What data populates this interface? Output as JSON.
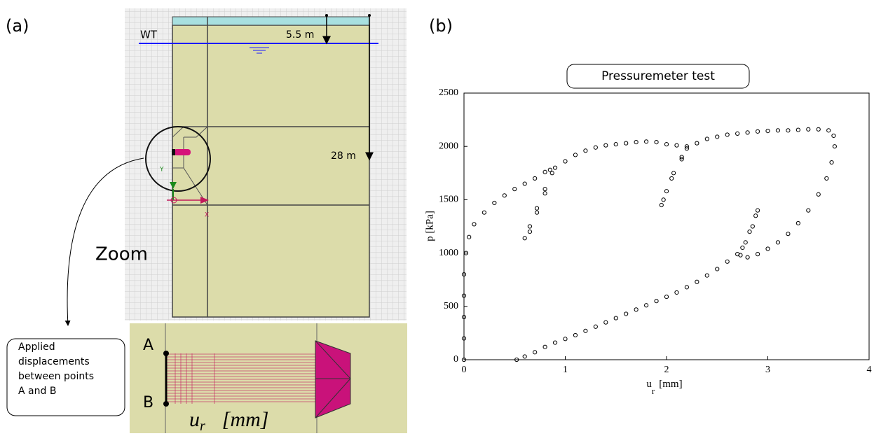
{
  "panel_a": {
    "label": "(a)",
    "water_table": "WT",
    "depth_water": "5.5 m",
    "depth_total": "28 m",
    "axis_y": "Y",
    "axis_x": "X",
    "zoom": "Zoom",
    "note": [
      "Applied",
      "displacements",
      "between points",
      "A and B"
    ],
    "point_a": "A",
    "point_b": "B",
    "zoom_label": [
      "u",
      "r",
      "[mm]"
    ]
  },
  "chart_data": {
    "type": "scatter",
    "panel_label": "(b)",
    "title": "Pressuremeter test",
    "xlabel": [
      "u",
      "r",
      "[mm]"
    ],
    "ylabel": "p  [kPa]",
    "color": "#000000",
    "xlim": [
      0,
      4
    ],
    "ylim": [
      0,
      2500
    ],
    "xticks": [
      0,
      1,
      2,
      3,
      4
    ],
    "yticks": [
      0,
      500,
      1000,
      1500,
      2000,
      2500
    ],
    "x": [
      0,
      0,
      0,
      0,
      0,
      0.02,
      0.05,
      0.1,
      0.2,
      0.3,
      0.4,
      0.5,
      0.6,
      0.7,
      0.8,
      0.85,
      0.8,
      0.72,
      0.65,
      0.6,
      0.65,
      0.72,
      0.8,
      0.87,
      0.9,
      1.0,
      1.1,
      1.2,
      1.3,
      1.4,
      1.5,
      1.6,
      1.7,
      1.8,
      1.9,
      2.0,
      2.1,
      2.2,
      2.15,
      2.07,
      2.0,
      1.95,
      1.97,
      2.05,
      2.15,
      2.2,
      2.3,
      2.4,
      2.5,
      2.6,
      2.7,
      2.8,
      2.9,
      3.0,
      3.1,
      3.2,
      3.3,
      3.4,
      3.5,
      3.6,
      3.65,
      3.66,
      3.63,
      3.58,
      3.5,
      3.4,
      3.3,
      3.2,
      3.1,
      3.0,
      2.9,
      2.8,
      2.73,
      2.78,
      2.85,
      2.9,
      2.88,
      2.82,
      2.75,
      2.7,
      2.6,
      2.5,
      2.4,
      2.3,
      2.2,
      2.1,
      2.0,
      1.9,
      1.8,
      1.7,
      1.6,
      1.5,
      1.4,
      1.3,
      1.2,
      1.1,
      1.0,
      0.9,
      0.8,
      0.7,
      0.6,
      0.52
    ],
    "values": [
      0,
      200,
      400,
      600,
      800,
      1000,
      1150,
      1270,
      1380,
      1470,
      1540,
      1600,
      1650,
      1700,
      1760,
      1780,
      1600,
      1420,
      1250,
      1140,
      1200,
      1380,
      1560,
      1750,
      1800,
      1860,
      1920,
      1960,
      1990,
      2010,
      2020,
      2030,
      2040,
      2045,
      2040,
      2020,
      2010,
      2000,
      1900,
      1750,
      1580,
      1450,
      1500,
      1700,
      1880,
      1980,
      2030,
      2070,
      2090,
      2110,
      2120,
      2130,
      2140,
      2145,
      2150,
      2150,
      2155,
      2160,
      2160,
      2150,
      2100,
      2000,
      1850,
      1700,
      1550,
      1400,
      1280,
      1180,
      1100,
      1040,
      990,
      960,
      980,
      1100,
      1250,
      1400,
      1350,
      1200,
      1050,
      990,
      920,
      850,
      790,
      730,
      680,
      630,
      590,
      550,
      510,
      470,
      430,
      390,
      350,
      310,
      270,
      230,
      195,
      160,
      120,
      70,
      30,
      0
    ]
  }
}
